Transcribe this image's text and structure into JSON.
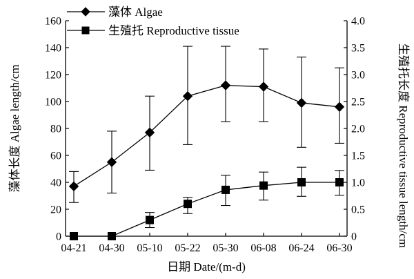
{
  "chart_data": {
    "type": "line",
    "categories": [
      "04-21",
      "04-30",
      "05-10",
      "05-22",
      "05-30",
      "06-08",
      "06-24",
      "06-30"
    ],
    "xlabel": "日期 Date/(m-d)",
    "ylabel_left": "藻体长度 Algae length/cm",
    "ylabel_right": "生殖托长度 Reproductive tissue length/cm",
    "ylim_left": [
      0,
      160
    ],
    "yticks_left": [
      "0",
      "20",
      "40",
      "60",
      "80",
      "100",
      "120",
      "140",
      "160"
    ],
    "ylim_right": [
      0,
      4.0
    ],
    "yticks_right": [
      "0",
      "0.5",
      "1.0",
      "1.5",
      "2.0",
      "2.5",
      "3.0",
      "3.5",
      "4.0"
    ],
    "grid": false,
    "legend_position": "top-left",
    "series": [
      {
        "name": "藻体 Algae",
        "axis": "left",
        "marker": "diamond",
        "values": [
          37,
          55,
          77,
          104,
          112,
          111,
          99,
          96
        ],
        "err_high": [
          48,
          78,
          104,
          141,
          141,
          139,
          133,
          125
        ],
        "err_low": [
          25,
          32,
          49,
          68,
          85,
          85,
          66,
          69
        ]
      },
      {
        "name": "生殖托 Reproductive tissue",
        "axis": "right",
        "marker": "square",
        "values": [
          0,
          0,
          0.3,
          0.6,
          0.86,
          0.94,
          1.0,
          1.0
        ],
        "err_high": [
          0,
          0,
          0.44,
          0.72,
          1.13,
          1.19,
          1.28,
          1.22
        ],
        "err_low": [
          0,
          0,
          0.16,
          0.42,
          0.57,
          0.67,
          0.74,
          0.76
        ]
      }
    ]
  }
}
